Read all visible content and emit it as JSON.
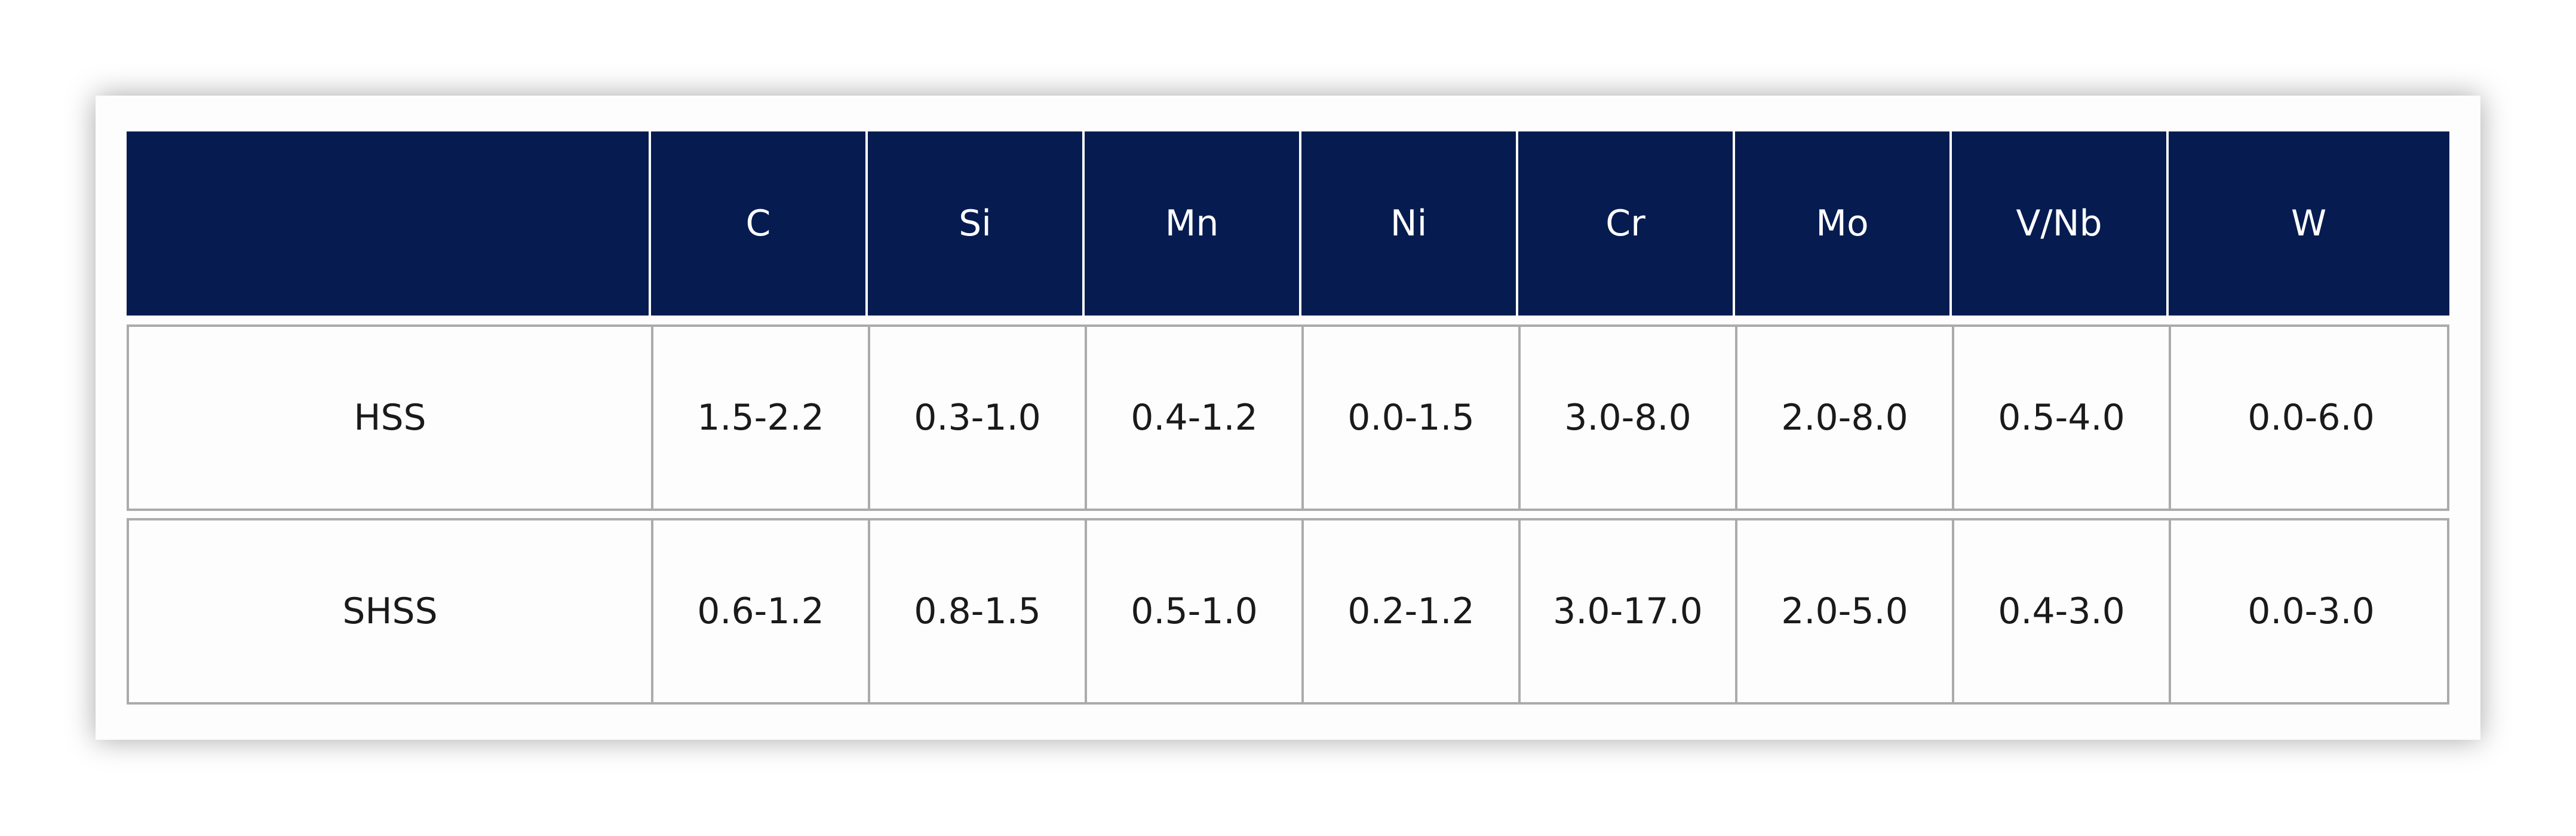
{
  "table": {
    "header": [
      "C",
      "Si",
      "Mn",
      "Ni",
      "Cr",
      "Mo",
      "V/Nb",
      "W"
    ],
    "rows": [
      [
        "HSS",
        "1.5-2.2",
        "0.3-1.0",
        "0.4-1.2",
        "0.0-1.5",
        "3.0-8.0",
        "2.0-8.0",
        "0.5-4.0",
        "0.0-6.0"
      ],
      [
        "SHSS",
        "0.6-1.2",
        "0.8-1.5",
        "0.5-1.0",
        "0.2-1.2",
        "3.0-17.0",
        "2.0-5.0",
        "0.4-3.0",
        "0.0-3.0"
      ]
    ]
  }
}
